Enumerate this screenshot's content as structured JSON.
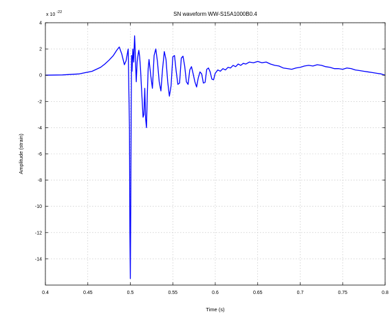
{
  "chart_data": {
    "type": "line",
    "title": "SN waveform WW-S15A1000B0.4",
    "xlabel": "Time (s)",
    "ylabel": "Amplitude (strain)",
    "y_multiplier_label": "x 10",
    "y_multiplier_exponent": "-22",
    "xlim": [
      0.4,
      0.8
    ],
    "ylim": [
      -16,
      4
    ],
    "xticks": [
      "0.4",
      "0.45",
      "0.5",
      "0.55",
      "0.6",
      "0.65",
      "0.7",
      "0.75",
      "0.8"
    ],
    "yticks": [
      "4",
      "2",
      "0",
      "-2",
      "-4",
      "-6",
      "-8",
      "-10",
      "-12",
      "-14"
    ],
    "grid": true,
    "line_color": "#0000ff",
    "series": [
      {
        "x": [
          0.4,
          0.42,
          0.44,
          0.455,
          0.465,
          0.47,
          0.475,
          0.48,
          0.484,
          0.487,
          0.49,
          0.493,
          0.495,
          0.4975,
          0.499,
          0.4995,
          0.5,
          0.5005,
          0.501,
          0.5015,
          0.502,
          0.503,
          0.504,
          0.505,
          0.5055,
          0.506,
          0.507,
          0.508,
          0.509,
          0.51,
          0.511,
          0.512,
          0.513,
          0.514,
          0.515,
          0.516,
          0.517,
          0.518,
          0.519,
          0.52,
          0.521,
          0.522,
          0.524,
          0.526,
          0.528,
          0.53,
          0.532,
          0.534,
          0.536,
          0.538,
          0.54,
          0.542,
          0.544,
          0.546,
          0.548,
          0.55,
          0.552,
          0.554,
          0.556,
          0.558,
          0.56,
          0.562,
          0.564,
          0.566,
          0.568,
          0.57,
          0.572,
          0.574,
          0.576,
          0.578,
          0.58,
          0.582,
          0.584,
          0.586,
          0.588,
          0.59,
          0.592,
          0.594,
          0.596,
          0.598,
          0.6,
          0.603,
          0.606,
          0.609,
          0.612,
          0.615,
          0.618,
          0.621,
          0.624,
          0.627,
          0.63,
          0.633,
          0.636,
          0.64,
          0.645,
          0.65,
          0.655,
          0.66,
          0.665,
          0.67,
          0.675,
          0.68,
          0.685,
          0.69,
          0.695,
          0.7,
          0.705,
          0.71,
          0.715,
          0.72,
          0.725,
          0.73,
          0.735,
          0.74,
          0.745,
          0.75,
          0.755,
          0.76,
          0.765,
          0.77,
          0.775,
          0.78,
          0.785,
          0.79,
          0.795,
          0.8
        ],
        "values": [
          0.0,
          0.02,
          0.1,
          0.3,
          0.6,
          0.85,
          1.15,
          1.5,
          1.9,
          2.15,
          1.6,
          0.8,
          1.1,
          2.0,
          -4.0,
          -12.0,
          -15.5,
          -10.0,
          -3.0,
          1.5,
          0.3,
          2.0,
          1.0,
          3.0,
          2.3,
          1.3,
          -0.5,
          1.0,
          1.5,
          1.9,
          1.4,
          0.5,
          -0.8,
          -2.0,
          -3.2,
          -3.0,
          -1.0,
          -3.3,
          -4.0,
          -1.5,
          0.5,
          1.2,
          0.0,
          -1.0,
          1.5,
          2.0,
          1.0,
          -0.5,
          -1.2,
          0.5,
          1.8,
          1.2,
          -0.5,
          -1.6,
          -0.8,
          1.4,
          1.5,
          0.3,
          -0.7,
          -0.6,
          1.3,
          1.45,
          0.7,
          -0.5,
          -0.7,
          0.4,
          0.65,
          0.1,
          -0.5,
          -0.9,
          -0.2,
          0.25,
          0.1,
          -0.6,
          -0.55,
          0.45,
          0.55,
          0.25,
          -0.3,
          -0.35,
          0.15,
          0.4,
          0.3,
          0.5,
          0.4,
          0.6,
          0.55,
          0.75,
          0.65,
          0.85,
          0.75,
          0.9,
          0.85,
          1.0,
          0.95,
          1.05,
          0.95,
          1.0,
          0.85,
          0.75,
          0.7,
          0.55,
          0.5,
          0.45,
          0.55,
          0.6,
          0.7,
          0.75,
          0.7,
          0.8,
          0.75,
          0.65,
          0.6,
          0.5,
          0.5,
          0.45,
          0.55,
          0.5,
          0.4,
          0.35,
          0.3,
          0.25,
          0.2,
          0.15,
          0.1,
          0.0
        ]
      }
    ]
  }
}
